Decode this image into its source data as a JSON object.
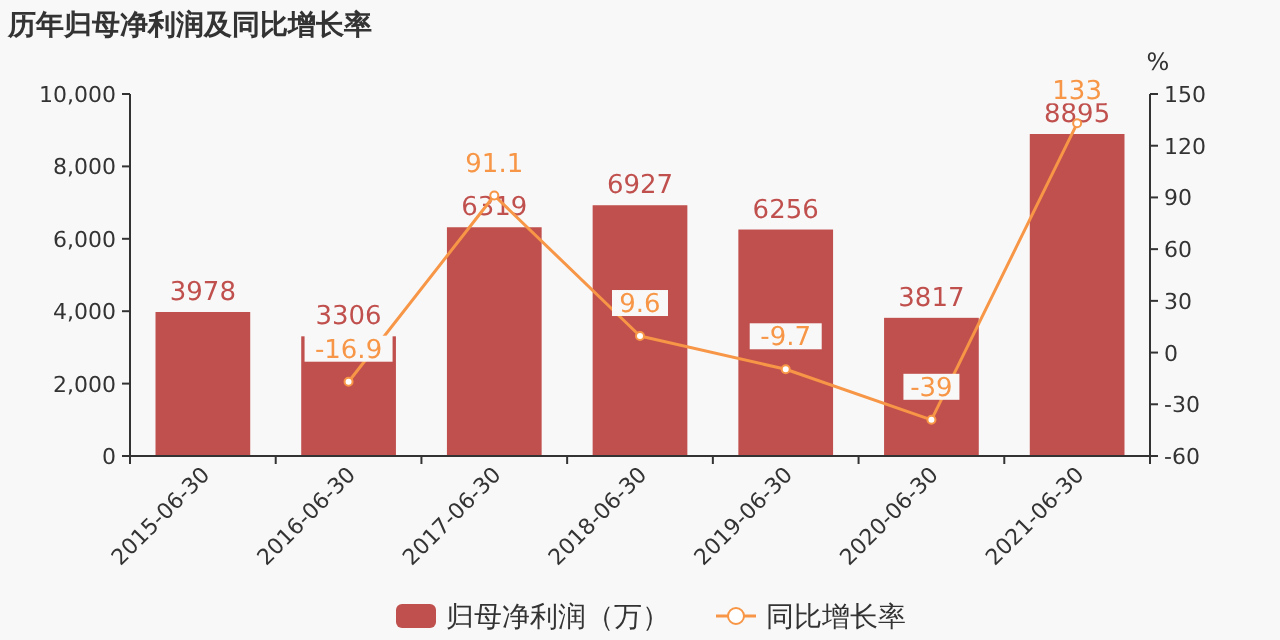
{
  "chart_data": {
    "type": "bar",
    "title": "历年归母净利润及同比增长率",
    "y2label": "%",
    "categories": [
      "2015-06-30",
      "2016-06-30",
      "2017-06-30",
      "2018-06-30",
      "2019-06-30",
      "2020-06-30",
      "2021-06-30"
    ],
    "series": [
      {
        "name": "归母净利润（万）",
        "color": "#c0504d",
        "values": [
          3978,
          3306,
          6319,
          6927,
          6256,
          3817,
          8895
        ]
      },
      {
        "name": "同比增长率",
        "type": "line",
        "axis": "y2",
        "color": "#f79646",
        "marker": "circle",
        "values": [
          null,
          -16.9,
          91.1,
          9.6,
          -9.7,
          -39,
          133
        ]
      }
    ],
    "ylim": [
      0,
      10000
    ],
    "yticks": [
      {
        "value": 0,
        "label": "0"
      },
      {
        "value": 2000,
        "label": "2,000"
      },
      {
        "value": 4000,
        "label": "4,000"
      },
      {
        "value": 6000,
        "label": "6,000"
      },
      {
        "value": 8000,
        "label": "8,000"
      },
      {
        "value": 10000,
        "label": "10,000"
      }
    ],
    "y2lim": [
      -60,
      150
    ],
    "y2ticks": [
      -60,
      -30,
      0,
      30,
      60,
      90,
      120,
      150
    ],
    "data_labels": true,
    "legend": "bottom",
    "grid": false
  }
}
